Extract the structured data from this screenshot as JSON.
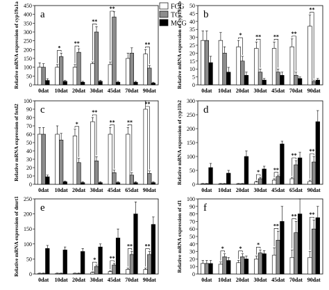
{
  "legend": {
    "entries": [
      {
        "label": "FCG",
        "color": "#ffffff"
      },
      {
        "label": "TG",
        "color": "#8c8c8c"
      },
      {
        "label": "MCG",
        "color": "#000000"
      }
    ]
  },
  "chart_data": [
    {
      "type": "bar",
      "panel_label": "a",
      "ylabel": "Relative mRNA expression of cyp19a1a",
      "categories": [
        "0dat",
        "10dat",
        "20dat",
        "30dat",
        "45dat",
        "70dat",
        "90dat"
      ],
      "ylim": [
        0,
        450
      ],
      "yticks": [
        0,
        50,
        100,
        150,
        200,
        250,
        300,
        350,
        400,
        450
      ],
      "series": [
        {
          "name": "FCG",
          "values": [
            100,
            100,
            100,
            120,
            115,
            150,
            175
          ],
          "errors": [
            25,
            15,
            15,
            10,
            15,
            30,
            25
          ]
        },
        {
          "name": "TG",
          "values": [
            100,
            160,
            185,
            300,
            385,
            180,
            95
          ],
          "errors": [
            20,
            20,
            20,
            30,
            30,
            30,
            15
          ]
        },
        {
          "name": "MCG",
          "values": [
            25,
            20,
            15,
            20,
            15,
            15,
            10
          ],
          "errors": [
            10,
            5,
            5,
            5,
            5,
            5,
            5
          ]
        }
      ],
      "significance": [
        {
          "category": "10dat",
          "text": "*"
        },
        {
          "category": "20dat",
          "text": "**"
        },
        {
          "category": "30dat",
          "text": "**"
        },
        {
          "category": "45dat",
          "text": "**"
        },
        {
          "category": "90dat",
          "text": "**"
        }
      ]
    },
    {
      "type": "bar",
      "panel_label": "b",
      "ylabel": "Relative mRNA expression of cyp19a1b",
      "categories": [
        "0dat",
        "10dat",
        "20dat",
        "30dat",
        "45dat",
        "70dat",
        "90dat"
      ],
      "ylim": [
        0,
        50
      ],
      "yticks": [
        0,
        5,
        10,
        15,
        20,
        25,
        30,
        35,
        40,
        45,
        50
      ],
      "series": [
        {
          "name": "FCG",
          "values": [
            28,
            28,
            24,
            23,
            23,
            24,
            37
          ],
          "errors": [
            6,
            5,
            4,
            4,
            4,
            5,
            7
          ]
        },
        {
          "name": "TG",
          "values": [
            28,
            20,
            15,
            8,
            8,
            6,
            2
          ],
          "errors": [
            6,
            4,
            3,
            2,
            2,
            2,
            1
          ]
        },
        {
          "name": "MCG",
          "values": [
            14,
            8,
            6,
            3,
            6,
            4,
            3
          ],
          "errors": [
            4,
            3,
            2,
            1,
            2,
            1,
            1
          ]
        }
      ],
      "significance": [
        {
          "category": "20dat",
          "text": "*"
        },
        {
          "category": "30dat",
          "text": "**"
        },
        {
          "category": "45dat",
          "text": "**"
        },
        {
          "category": "70dat",
          "text": "**"
        },
        {
          "category": "90dat",
          "text": "**"
        }
      ]
    },
    {
      "type": "bar",
      "panel_label": "c",
      "ylabel": "Relative mRNA expression of foxl2",
      "categories": [
        "0dat",
        "10dat",
        "20dat",
        "30dat",
        "45dat",
        "65dat",
        "90dat"
      ],
      "ylim": [
        0,
        100
      ],
      "yticks": [
        0,
        10,
        20,
        30,
        40,
        50,
        60,
        70,
        80,
        90,
        100
      ],
      "series": [
        {
          "name": "FCG",
          "values": [
            60,
            60,
            58,
            75,
            60,
            60,
            90
          ],
          "errors": [
            8,
            10,
            8,
            5,
            8,
            8,
            10
          ]
        },
        {
          "name": "TG",
          "values": [
            60,
            53,
            26,
            28,
            14,
            11,
            13
          ],
          "errors": [
            8,
            8,
            5,
            5,
            3,
            3,
            3
          ]
        },
        {
          "name": "MCG",
          "values": [
            9,
            3,
            2,
            2,
            2,
            2,
            2
          ],
          "errors": [
            2,
            1,
            1,
            1,
            1,
            1,
            1
          ]
        }
      ],
      "significance": [
        {
          "category": "20dat",
          "text": "*"
        },
        {
          "category": "30dat",
          "text": "**"
        },
        {
          "category": "45dat",
          "text": "**"
        },
        {
          "category": "65dat",
          "text": "**"
        },
        {
          "category": "90dat",
          "text": "**"
        }
      ]
    },
    {
      "type": "bar",
      "panel_label": "d",
      "ylabel": "Relative mRNA expression of cyp11b2",
      "categories": [
        "0dat",
        "10dat",
        "20dat",
        "30dat",
        "45dat",
        "65dat",
        "90dat"
      ],
      "ylim": [
        0,
        300
      ],
      "yticks": [
        0,
        50,
        100,
        150,
        200,
        250,
        300
      ],
      "series": [
        {
          "name": "FCG",
          "values": [
            2,
            2,
            2,
            8,
            15,
            20,
            10
          ],
          "errors": [
            1,
            1,
            1,
            3,
            5,
            5,
            5
          ]
        },
        {
          "name": "TG",
          "values": [
            2,
            2,
            2,
            20,
            28,
            70,
            80
          ],
          "errors": [
            1,
            1,
            1,
            5,
            5,
            15,
            20
          ]
        },
        {
          "name": "MCG",
          "values": [
            60,
            40,
            100,
            55,
            145,
            95,
            225
          ],
          "errors": [
            15,
            10,
            20,
            10,
            10,
            20,
            40
          ]
        }
      ],
      "significance": [
        {
          "category": "30dat",
          "text": "*"
        },
        {
          "category": "45dat",
          "text": "**"
        },
        {
          "category": "65dat",
          "text": "**"
        },
        {
          "category": "90dat",
          "text": "**"
        }
      ]
    },
    {
      "type": "bar",
      "panel_label": "e",
      "ylabel": "Relative mRNA expression of dmrt1",
      "categories": [
        "0dat",
        "10dat",
        "20dat",
        "30dat",
        "45dat",
        "70dat",
        "90dat"
      ],
      "ylim": [
        0,
        250
      ],
      "yticks": [
        0,
        50,
        100,
        150,
        200,
        250
      ],
      "series": [
        {
          "name": "FCG",
          "values": [
            2,
            2,
            2,
            5,
            8,
            15,
            15
          ],
          "errors": [
            1,
            1,
            1,
            2,
            3,
            5,
            5
          ]
        },
        {
          "name": "TG",
          "values": [
            2,
            2,
            2,
            25,
            30,
            65,
            65
          ],
          "errors": [
            1,
            1,
            1,
            5,
            5,
            10,
            10
          ]
        },
        {
          "name": "MCG",
          "values": [
            85,
            80,
            75,
            90,
            120,
            200,
            165
          ],
          "errors": [
            10,
            10,
            10,
            10,
            30,
            40,
            25
          ]
        }
      ],
      "significance": [
        {
          "category": "30dat",
          "text": "*"
        },
        {
          "category": "45dat",
          "text": "**"
        },
        {
          "category": "70dat",
          "text": "**"
        },
        {
          "category": "90dat",
          "text": "**"
        }
      ]
    },
    {
      "type": "bar",
      "panel_label": "f",
      "ylabel": "Relative mRNA expression of sf1",
      "categories": [
        "0dat",
        "10dat",
        "20dat",
        "30dat",
        "45dat",
        "70dat",
        "90dat"
      ],
      "ylim": [
        0,
        100
      ],
      "yticks": [
        0,
        10,
        20,
        30,
        40,
        50,
        60,
        70,
        80,
        90,
        100
      ],
      "series": [
        {
          "name": "FCG",
          "values": [
            14,
            13,
            15,
            20,
            25,
            22,
            22
          ],
          "errors": [
            4,
            3,
            3,
            4,
            10,
            10,
            8
          ]
        },
        {
          "name": "TG",
          "values": [
            14,
            23,
            23,
            28,
            45,
            55,
            60
          ],
          "errors": [
            4,
            4,
            4,
            4,
            12,
            15,
            12
          ]
        },
        {
          "name": "MCG",
          "values": [
            14,
            18,
            20,
            27,
            70,
            80,
            75
          ],
          "errors": [
            4,
            4,
            4,
            4,
            20,
            20,
            15
          ]
        }
      ],
      "significance": [
        {
          "category": "10dat",
          "text": "*"
        },
        {
          "category": "20dat",
          "text": "*"
        },
        {
          "category": "30dat",
          "text": "*"
        },
        {
          "category": "45dat",
          "text": "**"
        },
        {
          "category": "70dat",
          "text": "**"
        },
        {
          "category": "90dat",
          "text": "**"
        }
      ]
    }
  ]
}
